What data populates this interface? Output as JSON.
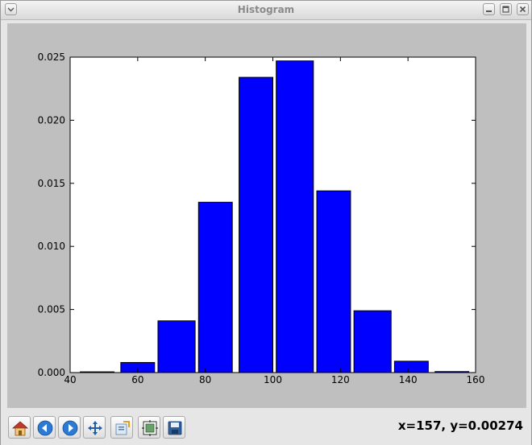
{
  "window": {
    "title": "Histogram",
    "buttons": [
      "menu",
      "minimize",
      "maximize",
      "close"
    ]
  },
  "toolbar": {
    "tools": [
      "home-icon",
      "back-icon",
      "forward-icon",
      "pan-icon",
      "zoom-icon",
      "subplots-icon",
      "save-icon"
    ],
    "coordinates": "x=157, y=0.00274"
  },
  "colors": {
    "bar_fill": "#0000ff",
    "canvas_bg": "#bfbfbf",
    "axes_bg": "#ffffff"
  },
  "chart_data": {
    "type": "bar",
    "title": "",
    "xlabel": "",
    "ylabel": "",
    "xlim": [
      40,
      160
    ],
    "ylim": [
      0,
      0.025
    ],
    "x_ticks": [
      "40",
      "60",
      "80",
      "100",
      "120",
      "140",
      "160"
    ],
    "y_ticks": [
      "0.000",
      "0.005",
      "0.010",
      "0.015",
      "0.020",
      "0.025"
    ],
    "bins": [
      {
        "x0": 43,
        "x1": 53,
        "value": 6e-05
      },
      {
        "x0": 55,
        "x1": 65,
        "value": 0.0008
      },
      {
        "x0": 66,
        "x1": 77,
        "value": 0.0041
      },
      {
        "x0": 78,
        "x1": 88,
        "value": 0.0135
      },
      {
        "x0": 90,
        "x1": 100,
        "value": 0.0234
      },
      {
        "x0": 101,
        "x1": 112,
        "value": 0.0247
      },
      {
        "x0": 113,
        "x1": 123,
        "value": 0.0144
      },
      {
        "x0": 124,
        "x1": 135,
        "value": 0.0049
      },
      {
        "x0": 136,
        "x1": 146,
        "value": 0.0009
      },
      {
        "x0": 148,
        "x1": 158,
        "value": 8e-05
      }
    ],
    "grid": false,
    "legend": "none"
  }
}
